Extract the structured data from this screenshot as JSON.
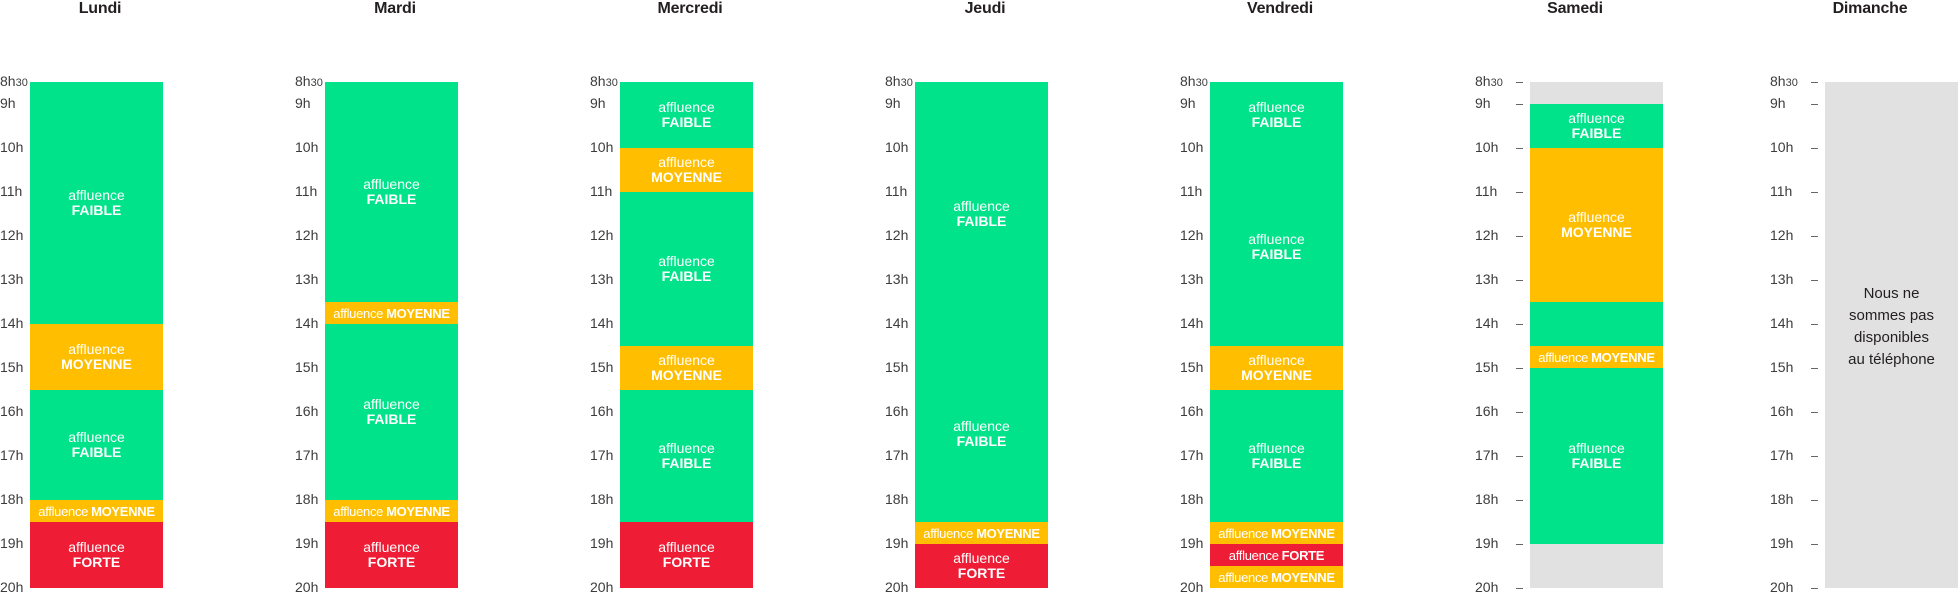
{
  "colors": {
    "faible": "#00e38a",
    "moyenne": "#ffbf00",
    "forte": "#ee1d35",
    "closed": "#e1e1e1"
  },
  "chart_data": {
    "type": "table",
    "y_axis": {
      "ticks": [
        "8h30",
        "9h",
        "10h",
        "11h",
        "12h",
        "13h",
        "14h",
        "15h",
        "16h",
        "17h",
        "18h",
        "19h",
        "20h"
      ],
      "range": [
        8.5,
        20
      ]
    },
    "days": [
      {
        "name": "Lundi",
        "blocks": [
          {
            "start": 8.5,
            "end": 14,
            "level": "faible",
            "word": "affluence",
            "label": "FAIBLE"
          },
          {
            "start": 14,
            "end": 15.5,
            "level": "moyenne",
            "word": "affluence",
            "label": "MOYENNE"
          },
          {
            "start": 15.5,
            "end": 18,
            "level": "faible",
            "word": "affluence",
            "label": "FAIBLE"
          },
          {
            "start": 18,
            "end": 18.5,
            "level": "moyenne",
            "word": "affluence",
            "label": "MOYENNE",
            "inline": true
          },
          {
            "start": 18.5,
            "end": 20,
            "level": "forte",
            "word": "affluence",
            "label": "FORTE"
          }
        ]
      },
      {
        "name": "Mardi",
        "blocks": [
          {
            "start": 8.5,
            "end": 13.5,
            "level": "faible",
            "word": "affluence",
            "label": "FAIBLE"
          },
          {
            "start": 13.5,
            "end": 14,
            "level": "moyenne",
            "word": "affluence",
            "label": "MOYENNE",
            "inline": true
          },
          {
            "start": 14,
            "end": 18,
            "level": "faible",
            "word": "affluence",
            "label": "FAIBLE"
          },
          {
            "start": 18,
            "end": 18.5,
            "level": "moyenne",
            "word": "affluence",
            "label": "MOYENNE",
            "inline": true
          },
          {
            "start": 18.5,
            "end": 20,
            "level": "forte",
            "word": "affluence",
            "label": "FORTE"
          }
        ]
      },
      {
        "name": "Mercredi",
        "blocks": [
          {
            "start": 8.5,
            "end": 10,
            "level": "faible",
            "word": "affluence",
            "label": "FAIBLE"
          },
          {
            "start": 10,
            "end": 11,
            "level": "moyenne",
            "word": "affluence",
            "label": "MOYENNE"
          },
          {
            "start": 11,
            "end": 14.5,
            "level": "faible",
            "word": "affluence",
            "label": "FAIBLE"
          },
          {
            "start": 14.5,
            "end": 15.5,
            "level": "moyenne",
            "word": "affluence",
            "label": "MOYENNE"
          },
          {
            "start": 15.5,
            "end": 18.5,
            "level": "faible",
            "word": "affluence",
            "label": "FAIBLE"
          },
          {
            "start": 18.5,
            "end": 20,
            "level": "forte",
            "word": "affluence",
            "label": "FORTE"
          }
        ]
      },
      {
        "name": "Jeudi",
        "blocks": [
          {
            "start": 8.5,
            "end": 14.5,
            "level": "faible",
            "word": "affluence",
            "label": "FAIBLE"
          },
          {
            "start": 14.5,
            "end": 18.5,
            "level": "faible",
            "word": "affluence",
            "label": "FAIBLE"
          },
          {
            "start": 18.5,
            "end": 19,
            "level": "moyenne",
            "word": "affluence",
            "label": "MOYENNE",
            "inline": true
          },
          {
            "start": 19,
            "end": 20,
            "level": "forte",
            "word": "affluence",
            "label": "FORTE"
          }
        ]
      },
      {
        "name": "Vendredi",
        "blocks": [
          {
            "start": 8.5,
            "end": 10,
            "level": "faible",
            "word": "affluence",
            "label": "FAIBLE"
          },
          {
            "start": 10,
            "end": 14.5,
            "level": "faible",
            "word": "affluence",
            "label": "FAIBLE"
          },
          {
            "start": 14.5,
            "end": 15.5,
            "level": "moyenne",
            "word": "affluence",
            "label": "MOYENNE"
          },
          {
            "start": 15.5,
            "end": 18.5,
            "level": "faible",
            "word": "affluence",
            "label": "FAIBLE"
          },
          {
            "start": 18.5,
            "end": 19,
            "level": "moyenne",
            "word": "affluence",
            "label": "MOYENNE",
            "inline": true
          },
          {
            "start": 19,
            "end": 19.5,
            "level": "forte",
            "word": "affluence",
            "label": "FORTE",
            "inline": true
          },
          {
            "start": 19.5,
            "end": 20,
            "level": "moyenne",
            "word": "affluence",
            "label": "MOYENNE",
            "inline": true
          }
        ]
      },
      {
        "name": "Samedi",
        "closed_range": [
          8.5,
          20
        ],
        "blocks": [
          {
            "start": 9,
            "end": 10,
            "level": "faible",
            "word": "affluence",
            "label": "FAIBLE"
          },
          {
            "start": 10,
            "end": 13.5,
            "level": "moyenne",
            "word": "affluence",
            "label": "MOYENNE"
          },
          {
            "start": 13.5,
            "end": 14.5,
            "level": "faible",
            "word": "",
            "label": ""
          },
          {
            "start": 14.5,
            "end": 15,
            "level": "moyenne",
            "word": "affluence",
            "label": "MOYENNE",
            "inline": true
          },
          {
            "start": 15,
            "end": 19,
            "level": "faible",
            "word": "affluence",
            "label": "FAIBLE"
          }
        ]
      },
      {
        "name": "Dimanche",
        "closed_range": [
          8.5,
          20
        ],
        "closed_message": [
          "Nous ne",
          "sommes pas",
          "disponibles",
          "au téléphone"
        ],
        "blocks": []
      }
    ]
  }
}
